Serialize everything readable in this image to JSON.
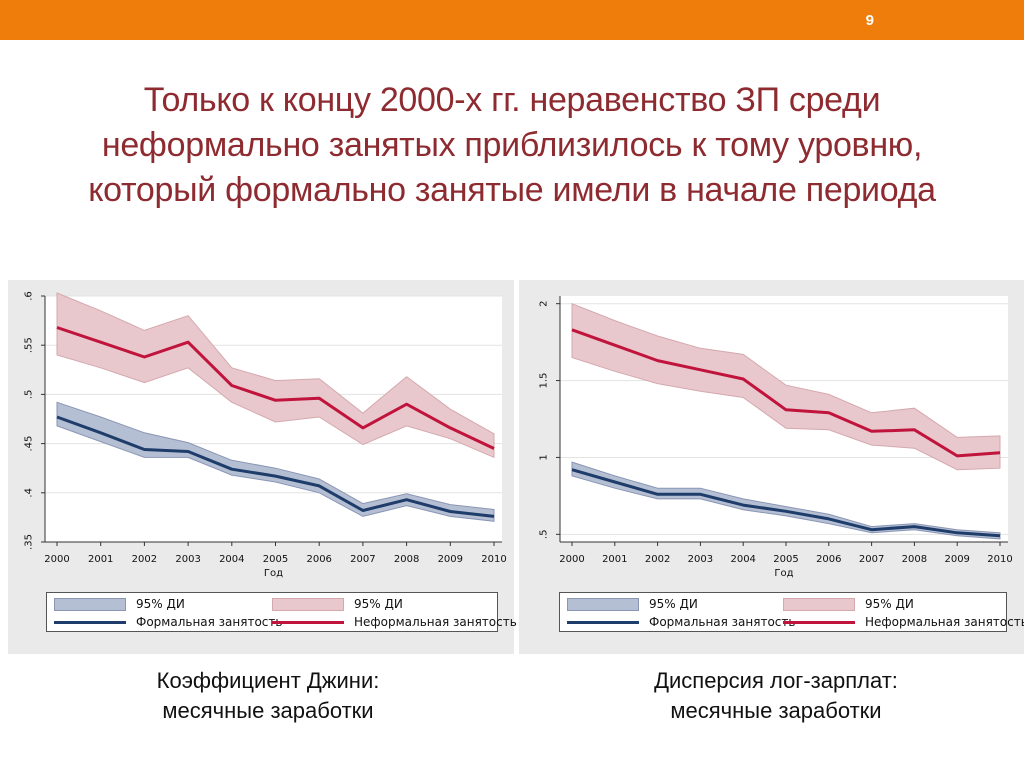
{
  "slide_number": "9",
  "title_lines": [
    "Только к концу 2000-х гг. неравенство ЗП среди",
    "неформально занятых приблизилось к тому уровню,",
    "который формально занятые имели в начале периода"
  ],
  "colors": {
    "topbar": "#ee7d0b",
    "title": "#8e2b30",
    "formal_line": "#1f3d6b",
    "informal_line": "#c0143c",
    "formal_band": "#b5bfd4",
    "informal_band": "#e8c8cc"
  },
  "captions": {
    "left": [
      "Коэффициент Джини:",
      "месячные заработки"
    ],
    "right": [
      "Дисперсия лог-зарплат:",
      "месячные заработки"
    ]
  },
  "chart_data": [
    {
      "type": "line",
      "xlabel": "Год",
      "ylabel": "",
      "x": [
        2000,
        2001,
        2002,
        2003,
        2004,
        2005,
        2006,
        2007,
        2008,
        2009,
        2010
      ],
      "xlim": [
        2000,
        2010
      ],
      "ylim": [
        0.35,
        0.6
      ],
      "yticks": [
        0.35,
        0.4,
        0.45,
        0.5,
        0.55,
        0.6
      ],
      "ytick_labels": [
        ".35",
        ".4",
        ".45",
        ".5",
        ".55",
        ".6"
      ],
      "grid": true,
      "legend": {
        "position": "bottom",
        "entries": [
          "95% ДИ",
          "95% ДИ",
          "Формальная занятость",
          "Неформальная занятость"
        ]
      },
      "series": [
        {
          "name": "Формальная занятость",
          "values": [
            0.477,
            0.461,
            0.444,
            0.442,
            0.424,
            0.417,
            0.407,
            0.382,
            0.393,
            0.381,
            0.376
          ],
          "ci_low": [
            0.468,
            0.452,
            0.436,
            0.436,
            0.418,
            0.411,
            0.4,
            0.376,
            0.387,
            0.376,
            0.371
          ],
          "ci_high": [
            0.492,
            0.477,
            0.461,
            0.451,
            0.433,
            0.425,
            0.414,
            0.389,
            0.399,
            0.388,
            0.383
          ]
        },
        {
          "name": "Неформальная занятость",
          "values": [
            0.568,
            0.553,
            0.538,
            0.553,
            0.509,
            0.494,
            0.496,
            0.466,
            0.49,
            0.466,
            0.445
          ],
          "ci_low": [
            0.54,
            0.527,
            0.512,
            0.527,
            0.492,
            0.472,
            0.477,
            0.449,
            0.468,
            0.455,
            0.436
          ],
          "ci_high": [
            0.603,
            0.585,
            0.565,
            0.58,
            0.527,
            0.514,
            0.516,
            0.481,
            0.518,
            0.485,
            0.46
          ]
        }
      ]
    },
    {
      "type": "line",
      "xlabel": "Год",
      "ylabel": "",
      "x": [
        2000,
        2001,
        2002,
        2003,
        2004,
        2005,
        2006,
        2007,
        2008,
        2009,
        2010
      ],
      "xlim": [
        2000,
        2010
      ],
      "ylim": [
        0.45,
        2.05
      ],
      "yticks": [
        0.5,
        1,
        1.5,
        2
      ],
      "ytick_labels": [
        ".5",
        "1",
        "1.5",
        "2"
      ],
      "grid": true,
      "legend": {
        "position": "bottom",
        "entries": [
          "95% ДИ",
          "95% ДИ",
          "Формальная занятость",
          "Неформальная занятость"
        ]
      },
      "series": [
        {
          "name": "Формальная занятость",
          "values": [
            0.92,
            0.84,
            0.76,
            0.76,
            0.69,
            0.65,
            0.6,
            0.53,
            0.55,
            0.51,
            0.49
          ],
          "ci_low": [
            0.88,
            0.8,
            0.73,
            0.73,
            0.66,
            0.62,
            0.57,
            0.51,
            0.53,
            0.49,
            0.47
          ],
          "ci_high": [
            0.97,
            0.88,
            0.8,
            0.8,
            0.73,
            0.68,
            0.63,
            0.55,
            0.57,
            0.53,
            0.51
          ]
        },
        {
          "name": "Неформальная занятость",
          "values": [
            1.83,
            1.73,
            1.63,
            1.57,
            1.51,
            1.31,
            1.29,
            1.17,
            1.18,
            1.01,
            1.03
          ],
          "ci_low": [
            1.65,
            1.56,
            1.48,
            1.43,
            1.39,
            1.19,
            1.18,
            1.08,
            1.06,
            0.92,
            0.93
          ],
          "ci_high": [
            2.0,
            1.89,
            1.79,
            1.71,
            1.67,
            1.47,
            1.41,
            1.29,
            1.32,
            1.13,
            1.14
          ]
        }
      ]
    }
  ]
}
